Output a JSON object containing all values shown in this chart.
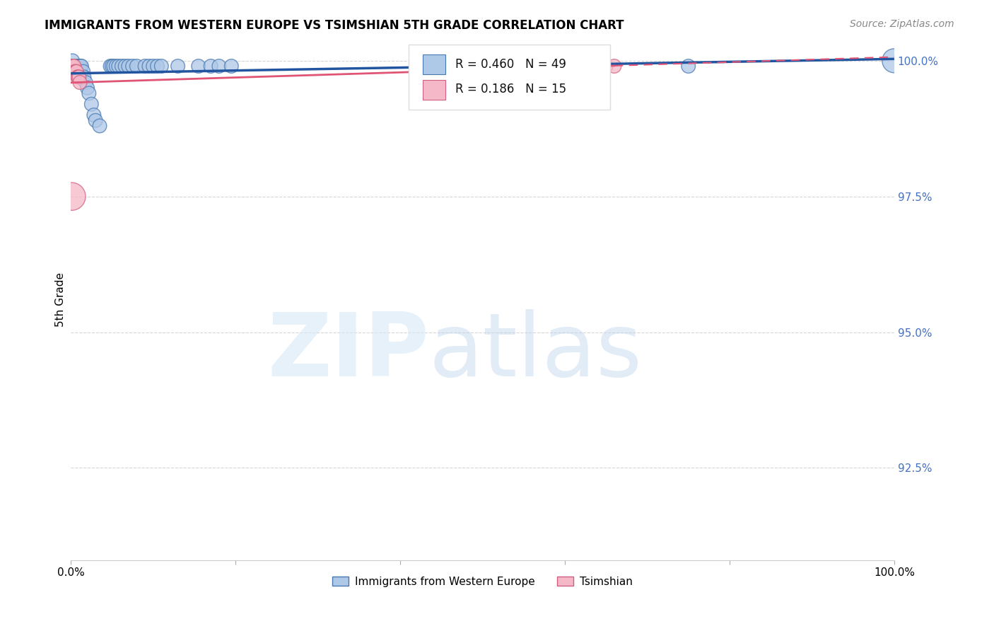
{
  "title": "IMMIGRANTS FROM WESTERN EUROPE VS TSIMSHIAN 5TH GRADE CORRELATION CHART",
  "source_text": "Source: ZipAtlas.com",
  "ylabel": "5th Grade",
  "xlim": [
    0.0,
    1.0
  ],
  "ylim": [
    0.908,
    1.004
  ],
  "yticks": [
    0.925,
    0.95,
    0.975,
    1.0
  ],
  "ytick_labels": [
    "92.5%",
    "95.0%",
    "97.5%",
    "100.0%"
  ],
  "xticks": [
    0.0,
    0.2,
    0.4,
    0.6,
    0.8,
    1.0
  ],
  "xtick_labels": [
    "0.0%",
    "",
    "",
    "",
    "",
    "100.0%"
  ],
  "blue_R": 0.46,
  "blue_N": 49,
  "pink_R": 0.186,
  "pink_N": 15,
  "blue_color": "#aec8e8",
  "pink_color": "#f4b8c8",
  "blue_edge_color": "#4878b0",
  "pink_edge_color": "#d06080",
  "blue_line_color": "#2255a0",
  "pink_line_color": "#e05575",
  "legend_blue_label": "Immigrants from Western Europe",
  "legend_pink_label": "Tsimshian",
  "blue_scatter_x": [
    0.001,
    0.001,
    0.002,
    0.002,
    0.003,
    0.004,
    0.004,
    0.005,
    0.006,
    0.007,
    0.008,
    0.009,
    0.01,
    0.011,
    0.012,
    0.013,
    0.015,
    0.016,
    0.018,
    0.02,
    0.022,
    0.025,
    0.028,
    0.03,
    0.035,
    0.048,
    0.05,
    0.052,
    0.055,
    0.058,
    0.062,
    0.066,
    0.07,
    0.075,
    0.08,
    0.09,
    0.095,
    0.1,
    0.105,
    0.11,
    0.13,
    0.155,
    0.17,
    0.18,
    0.195,
    0.48,
    0.61,
    0.75,
    1.0
  ],
  "blue_scatter_y": [
    0.999,
    0.998,
    1.0,
    0.999,
    0.999,
    0.998,
    0.999,
    0.999,
    0.999,
    0.999,
    0.999,
    0.999,
    0.999,
    0.999,
    0.999,
    0.999,
    0.998,
    0.997,
    0.996,
    0.995,
    0.994,
    0.992,
    0.99,
    0.989,
    0.988,
    0.999,
    0.999,
    0.999,
    0.999,
    0.999,
    0.999,
    0.999,
    0.999,
    0.999,
    0.999,
    0.999,
    0.999,
    0.999,
    0.999,
    0.999,
    0.999,
    0.999,
    0.999,
    0.999,
    0.999,
    0.999,
    0.999,
    0.999,
    1.0
  ],
  "blue_scatter_sizes": [
    200,
    200,
    200,
    200,
    200,
    200,
    200,
    200,
    200,
    200,
    200,
    200,
    200,
    200,
    200,
    200,
    200,
    200,
    200,
    200,
    200,
    200,
    200,
    200,
    200,
    200,
    200,
    200,
    200,
    200,
    200,
    200,
    200,
    200,
    200,
    200,
    200,
    200,
    200,
    200,
    200,
    200,
    200,
    200,
    200,
    200,
    200,
    200,
    600
  ],
  "pink_scatter_x": [
    0.001,
    0.002,
    0.003,
    0.004,
    0.005,
    0.006,
    0.007,
    0.008,
    0.009,
    0.01,
    0.011,
    0.001,
    0.64,
    0.65,
    0.66
  ],
  "pink_scatter_y": [
    0.999,
    0.999,
    0.999,
    0.999,
    0.998,
    0.998,
    0.998,
    0.997,
    0.997,
    0.997,
    0.996,
    0.975,
    0.999,
    0.999,
    0.999
  ],
  "pink_scatter_sizes": [
    200,
    200,
    200,
    200,
    200,
    200,
    200,
    200,
    200,
    200,
    200,
    800,
    200,
    200,
    200
  ]
}
